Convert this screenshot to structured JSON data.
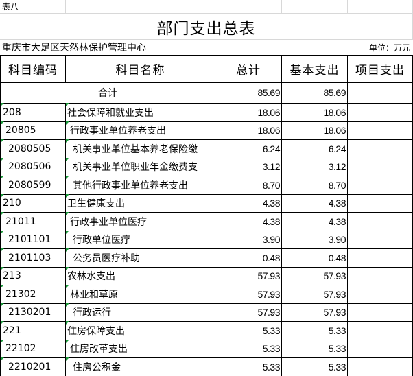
{
  "sheet_label": "表八",
  "title": "部门支出总表",
  "unit_name": "重庆市大足区天然林保护管理中心",
  "unit_label": "单位：万元",
  "table": {
    "headers": [
      "科目编码",
      "科目名称",
      "总计",
      "基本支出",
      "项目支出"
    ],
    "total": {
      "label": "合计",
      "total": "85.69",
      "basic": "85.69"
    },
    "rows": [
      [
        "208",
        "社会保障和就业支出",
        "18.06",
        "18.06"
      ],
      [
        "20805",
        "行政事业单位养老支出",
        "18.06",
        "18.06"
      ],
      [
        "2080505",
        "机关事业单位基本养老保险缴",
        "6.24",
        "6.24"
      ],
      [
        "2080506",
        "机关事业单位职业年金缴费支",
        "3.12",
        "3.12"
      ],
      [
        "2080599",
        "其他行政事业单位养老支出",
        "8.70",
        "8.70"
      ],
      [
        "210",
        "卫生健康支出",
        "4.38",
        "4.38"
      ],
      [
        "21011",
        "行政事业单位医疗",
        "4.38",
        "4.38"
      ],
      [
        "2101101",
        "行政单位医疗",
        "3.90",
        "3.90"
      ],
      [
        "2101103",
        "公务员医疗补助",
        "0.48",
        "0.48"
      ],
      [
        "213",
        "农林水支出",
        "57.93",
        "57.93"
      ],
      [
        "21302",
        "林业和草原",
        "57.93",
        "57.93"
      ],
      [
        "2130201",
        "行政运行",
        "57.93",
        "57.93"
      ],
      [
        "221",
        "住房保障支出",
        "5.33",
        "5.33"
      ],
      [
        "22102",
        "住房改革支出",
        "5.33",
        "5.33"
      ],
      [
        "2210201",
        "住房公积金",
        "5.33",
        "5.33"
      ]
    ]
  }
}
